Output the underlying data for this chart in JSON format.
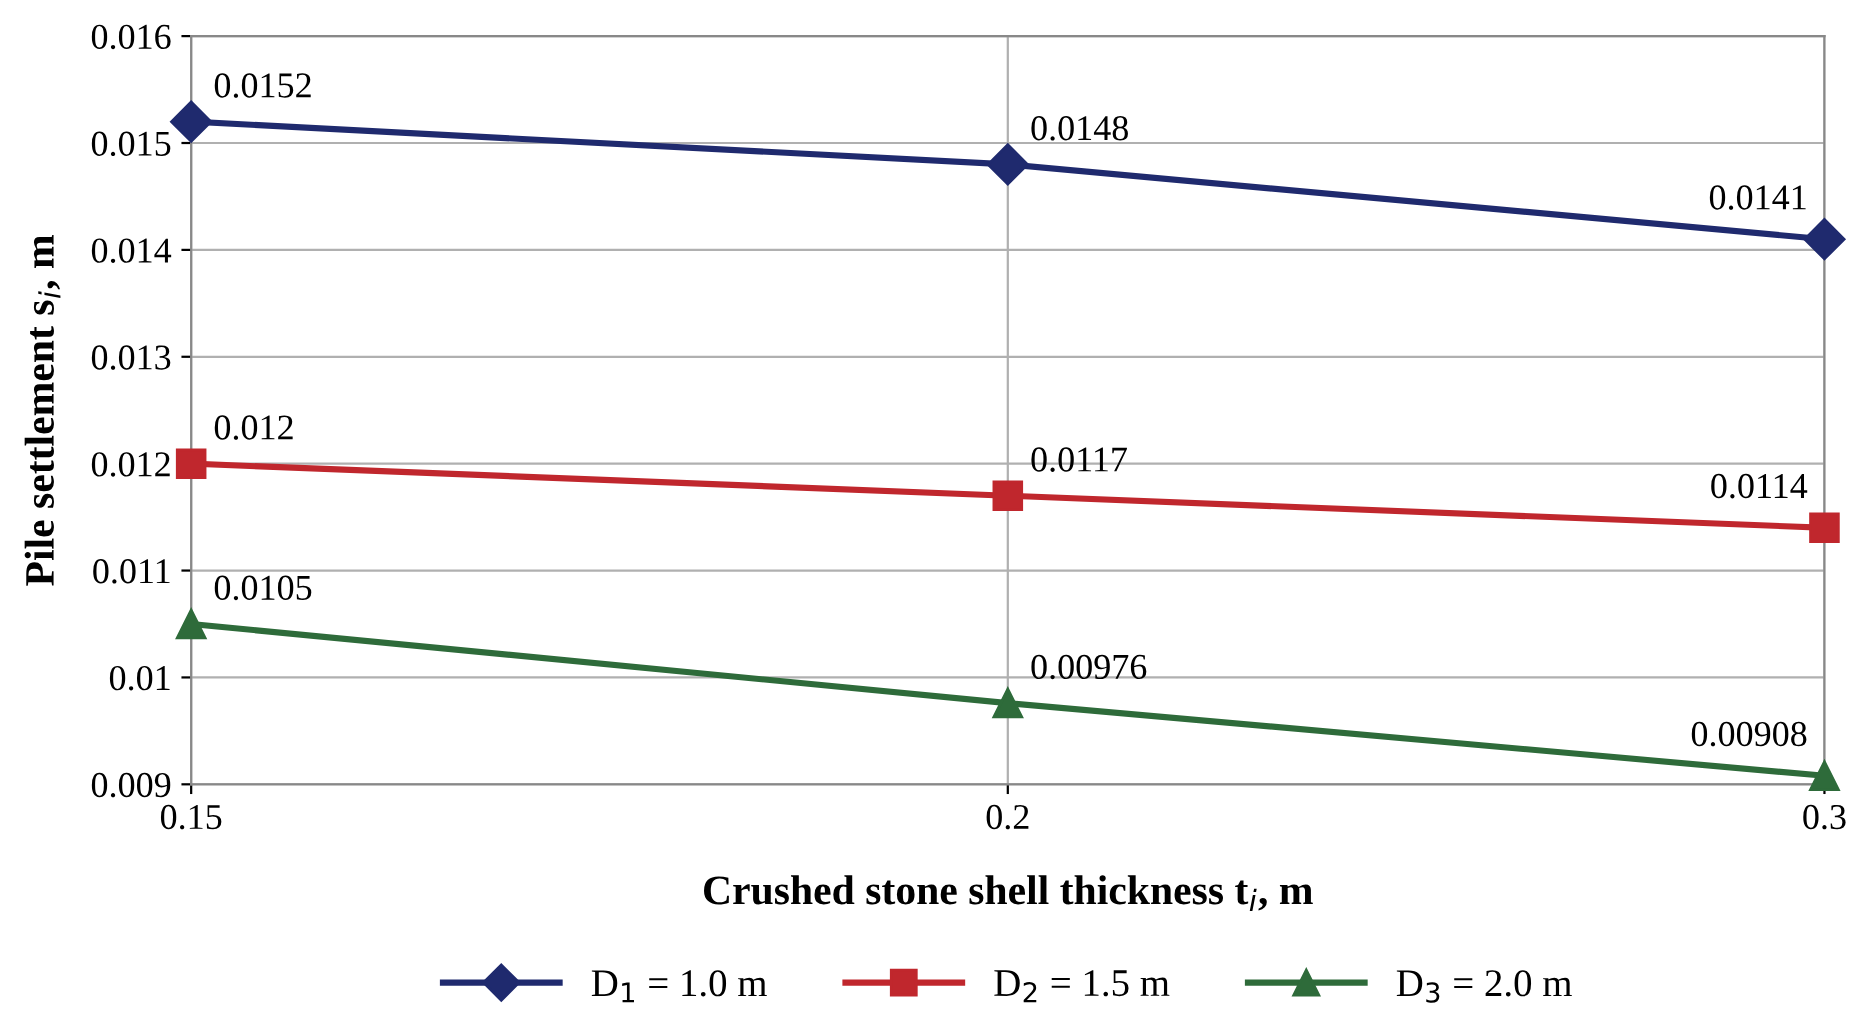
{
  "chart_data": {
    "type": "line",
    "xlabel": "Crushed stone shell thickness t$_{i}$, m",
    "ylabel": "Pile settlement s$_{i}$, m",
    "categories": [
      "0.15",
      "0.2",
      "0.3"
    ],
    "series": [
      {
        "name": "D$_{1}$ = 1.0 m",
        "color": "#1f2a6e",
        "marker": "diamond",
        "values": [
          0.0152,
          0.0148,
          0.0141
        ]
      },
      {
        "name": "D$_{2}$ = 1.5 m",
        "color": "#c0272d",
        "marker": "square",
        "values": [
          0.012,
          0.0117,
          0.0114
        ]
      },
      {
        "name": "D$_{3}$ = 2.0 m",
        "color": "#2e6b3a",
        "marker": "triangle",
        "values": [
          0.0105,
          0.00976,
          0.00908
        ]
      }
    ],
    "ylim": [
      0.009,
      0.016
    ],
    "yticks": [
      0.009,
      0.01,
      0.011,
      0.012,
      0.013,
      0.014,
      0.015,
      0.016
    ],
    "grid": true,
    "legend": "bottom",
    "data_labels": true,
    "line_style": "solid"
  }
}
